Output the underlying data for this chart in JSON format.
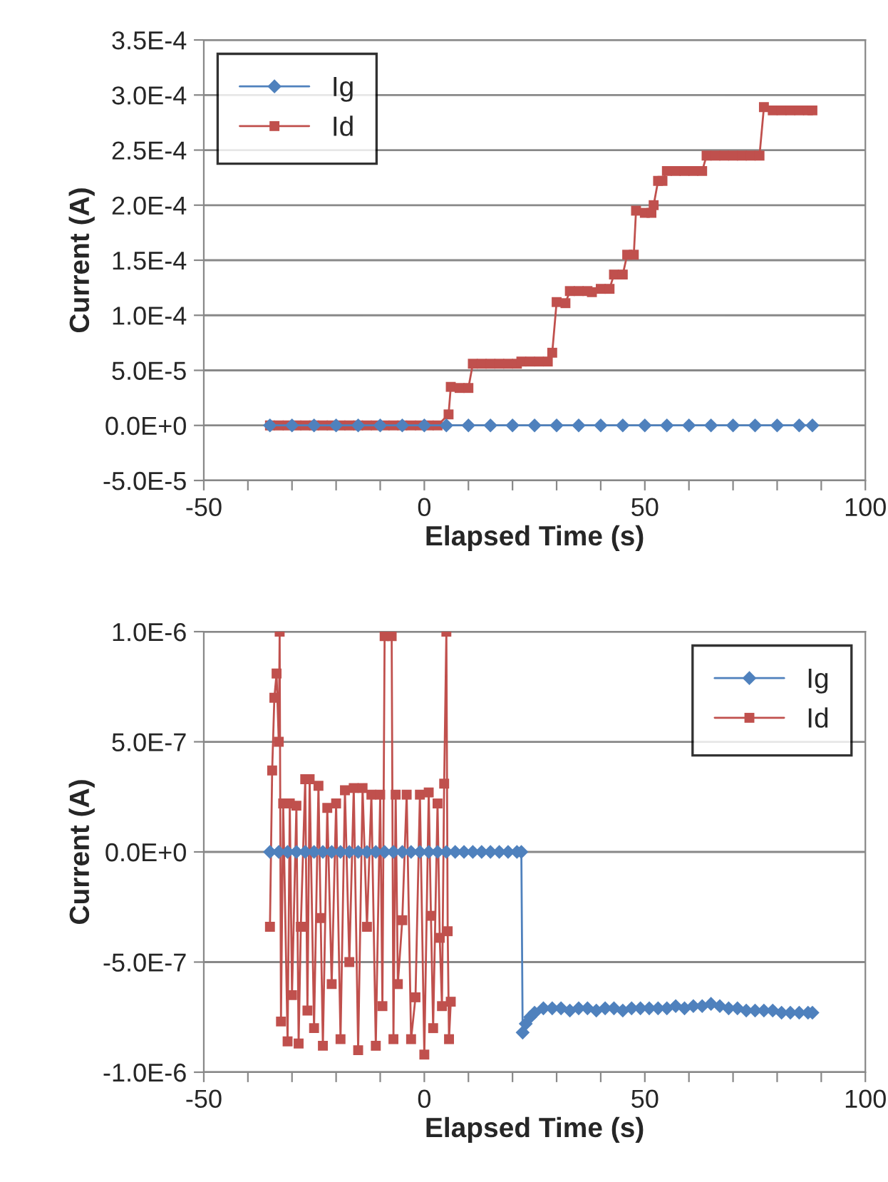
{
  "chart_data": [
    {
      "type": "line",
      "xlabel": "Elapsed Time (s)",
      "ylabel": "Current (A)",
      "line_style": "solid",
      "grid": "y",
      "legend": "top left",
      "xlim": [
        -50,
        100
      ],
      "xticks": [
        -50,
        {
          "value": -40,
          "label": null
        },
        {
          "value": -30,
          "label": null
        },
        {
          "value": -20,
          "label": null
        },
        {
          "value": -10,
          "label": null
        },
        0,
        {
          "value": 10,
          "label": null
        },
        {
          "value": 20,
          "label": null
        },
        {
          "value": 30,
          "label": null
        },
        {
          "value": 40,
          "label": null
        },
        50,
        {
          "value": 60,
          "label": null
        },
        {
          "value": 70,
          "label": null
        },
        {
          "value": 80,
          "label": null
        },
        {
          "value": 90,
          "label": null
        },
        100
      ],
      "ylim": [
        -5e-05,
        0.00035
      ],
      "yticks": [
        {
          "value": -5e-05,
          "label": "-5.0E-5"
        },
        {
          "value": 0,
          "label": "0.0E+0"
        },
        {
          "value": 5e-05,
          "label": "5.0E-5"
        },
        {
          "value": 0.0001,
          "label": "1.0E-4"
        },
        {
          "value": 0.00015,
          "label": "1.5E-4"
        },
        {
          "value": 0.0002,
          "label": "2.0E-4"
        },
        {
          "value": 0.00025,
          "label": "2.5E-4"
        },
        {
          "value": 0.0003,
          "label": "3.0E-4"
        },
        {
          "value": 0.00035,
          "label": "3.5E-4"
        }
      ],
      "series": [
        {
          "name": "Ig",
          "color": "#4f81bd",
          "marker": "diamond",
          "x": [
            -35,
            -30,
            -25,
            -20,
            -15,
            -10,
            -5,
            0,
            5,
            10,
            15,
            20,
            25,
            30,
            35,
            40,
            45,
            50,
            55,
            60,
            65,
            70,
            75,
            80,
            85,
            88
          ],
          "values": [
            0,
            0,
            0,
            0,
            0,
            0,
            0,
            0,
            0,
            0,
            0,
            0,
            0,
            0,
            0,
            0,
            0,
            0,
            0,
            0,
            0,
            0,
            0,
            0,
            0,
            0
          ]
        },
        {
          "name": "Id",
          "color": "#c0504d",
          "marker": "square",
          "x": [
            -35,
            -33,
            -31,
            -29,
            -27,
            -25,
            -23,
            -21,
            -19,
            -17,
            -15,
            -13,
            -11,
            -9,
            -7,
            -5,
            -3,
            -1,
            1,
            3,
            5.5,
            6,
            8,
            10,
            11,
            13,
            15,
            17,
            19,
            21,
            22,
            24,
            26,
            28,
            29,
            30,
            32,
            33,
            35,
            37,
            38,
            40,
            42,
            43,
            45,
            46,
            47.5,
            48,
            50,
            51.5,
            52,
            53,
            54,
            55,
            57,
            59,
            61,
            63,
            64,
            66,
            68,
            70,
            72,
            74,
            76,
            77,
            79,
            81,
            83,
            85,
            87,
            88
          ],
          "values": [
            0,
            0,
            0,
            0,
            0,
            0,
            0,
            0,
            0,
            0,
            0,
            0,
            0,
            0,
            0,
            0,
            0,
            0,
            0,
            0,
            1e-05,
            3.5e-05,
            3.4e-05,
            3.4e-05,
            5.6e-05,
            5.6e-05,
            5.6e-05,
            5.6e-05,
            5.6e-05,
            5.6e-05,
            5.8e-05,
            5.8e-05,
            5.8e-05,
            5.8e-05,
            6.6e-05,
            0.000112,
            0.000111,
            0.000122,
            0.000122,
            0.000122,
            0.000121,
            0.000124,
            0.000124,
            0.000137,
            0.000137,
            0.000155,
            0.000155,
            0.000195,
            0.000193,
            0.000193,
            0.0002,
            0.000222,
            0.000222,
            0.000231,
            0.000231,
            0.000231,
            0.000231,
            0.000231,
            0.000245,
            0.000245,
            0.000245,
            0.000245,
            0.000245,
            0.000245,
            0.000245,
            0.000289,
            0.000286,
            0.000286,
            0.000286,
            0.000286,
            0.000286,
            0.000286
          ]
        }
      ]
    },
    {
      "type": "line",
      "xlabel": "Elapsed Time (s)",
      "ylabel": "Current (A)",
      "line_style": "solid",
      "grid": "y",
      "legend": "top right",
      "xlim": [
        -50,
        100
      ],
      "xticks": [
        -50,
        {
          "value": -40,
          "label": null
        },
        {
          "value": -30,
          "label": null
        },
        {
          "value": -20,
          "label": null
        },
        {
          "value": -10,
          "label": null
        },
        0,
        {
          "value": 10,
          "label": null
        },
        {
          "value": 20,
          "label": null
        },
        {
          "value": 30,
          "label": null
        },
        {
          "value": 40,
          "label": null
        },
        50,
        {
          "value": 60,
          "label": null
        },
        {
          "value": 70,
          "label": null
        },
        {
          "value": 80,
          "label": null
        },
        {
          "value": 90,
          "label": null
        },
        100
      ],
      "ylim": [
        -1e-06,
        1e-06
      ],
      "yticks": [
        {
          "value": -1e-06,
          "label": "-1.0E-6"
        },
        {
          "value": -5e-07,
          "label": "-5.0E-7"
        },
        {
          "value": 0,
          "label": "0.0E+0"
        },
        {
          "value": 5e-07,
          "label": "5.0E-7"
        },
        {
          "value": 1e-06,
          "label": "1.0E-6"
        }
      ],
      "series": [
        {
          "name": "Ig",
          "color": "#4f81bd",
          "marker": "diamond",
          "x": [
            -35,
            -33,
            -31,
            -29,
            -27,
            -25,
            -23,
            -21,
            -19,
            -17,
            -15,
            -13,
            -11,
            -9,
            -7,
            -5,
            -3,
            -1,
            1,
            3,
            5,
            7,
            9,
            11,
            13,
            15,
            17,
            19,
            21,
            22,
            22.3,
            23,
            24,
            25,
            27,
            29,
            31,
            33,
            35,
            37,
            39,
            41,
            43,
            45,
            47,
            49,
            51,
            53,
            55,
            57,
            59,
            61,
            63,
            65,
            67,
            69,
            71,
            73,
            75,
            77,
            79,
            81,
            83,
            85,
            87,
            88
          ],
          "values": [
            0,
            0,
            0,
            0,
            0,
            0,
            0,
            0,
            0,
            0,
            0,
            0,
            0,
            0,
            0,
            0,
            0,
            0,
            0,
            0,
            0,
            0,
            0,
            0,
            0,
            0,
            0,
            0,
            0,
            0,
            -8.2e-07,
            -7.8e-07,
            -7.5e-07,
            -7.3e-07,
            -7.1e-07,
            -7.1e-07,
            -7.1e-07,
            -7.2e-07,
            -7.1e-07,
            -7.1e-07,
            -7.2e-07,
            -7.1e-07,
            -7.1e-07,
            -7.2e-07,
            -7.1e-07,
            -7.1e-07,
            -7.1e-07,
            -7.1e-07,
            -7.1e-07,
            -7e-07,
            -7.1e-07,
            -7e-07,
            -7e-07,
            -6.9e-07,
            -7e-07,
            -7.1e-07,
            -7.1e-07,
            -7.2e-07,
            -7.2e-07,
            -7.2e-07,
            -7.2e-07,
            -7.3e-07,
            -7.3e-07,
            -7.3e-07,
            -7.3e-07,
            -7.3e-07
          ]
        },
        {
          "name": "Id",
          "color": "#c0504d",
          "marker": "square",
          "x": [
            -35,
            -34.5,
            -34,
            -33.5,
            -33,
            -32.8,
            -32.5,
            -32,
            -31,
            -30.5,
            -30,
            -29,
            -28.5,
            -28,
            -27,
            -26.5,
            -26,
            -25,
            -24,
            -23.5,
            -23,
            -22,
            -21,
            -20,
            -19,
            -18,
            -17,
            -16,
            -15,
            -14,
            -13,
            -12,
            -11,
            -10,
            -9.5,
            -9,
            -7.4,
            -7,
            -6.5,
            -6,
            -5,
            -4,
            -3,
            -2,
            -1,
            0,
            1,
            1.5,
            2,
            3,
            3.5,
            4,
            4.5,
            5,
            5.3,
            5.6,
            6
          ],
          "values": [
            -3.4e-07,
            3.7e-07,
            7e-07,
            8.1e-07,
            5e-07,
            1e-06,
            -7.7e-07,
            2.2e-07,
            -8.6e-07,
            2.2e-07,
            -6.5e-07,
            2.1e-07,
            -8.7e-07,
            -3.4e-07,
            3.3e-07,
            -7.2e-07,
            3.3e-07,
            -8e-07,
            3e-07,
            -3e-07,
            -8.8e-07,
            2e-07,
            -6e-07,
            2.2e-07,
            -8.5e-07,
            2.8e-07,
            -5e-07,
            2.9e-07,
            -9e-07,
            2.9e-07,
            -3.4e-07,
            2.6e-07,
            -8.8e-07,
            2.6e-07,
            -7e-07,
            9.8e-07,
            9.8e-07,
            -8.5e-07,
            2.6e-07,
            -6e-07,
            -3.1e-07,
            2.6e-07,
            -8.5e-07,
            -6.6e-07,
            2.6e-07,
            -9.2e-07,
            2.7e-07,
            -2.9e-07,
            -8e-07,
            2.2e-07,
            -3.9e-07,
            -7e-07,
            3.1e-07,
            1e-06,
            -3.6e-07,
            -8.5e-07,
            -6.8e-07
          ]
        }
      ]
    }
  ]
}
